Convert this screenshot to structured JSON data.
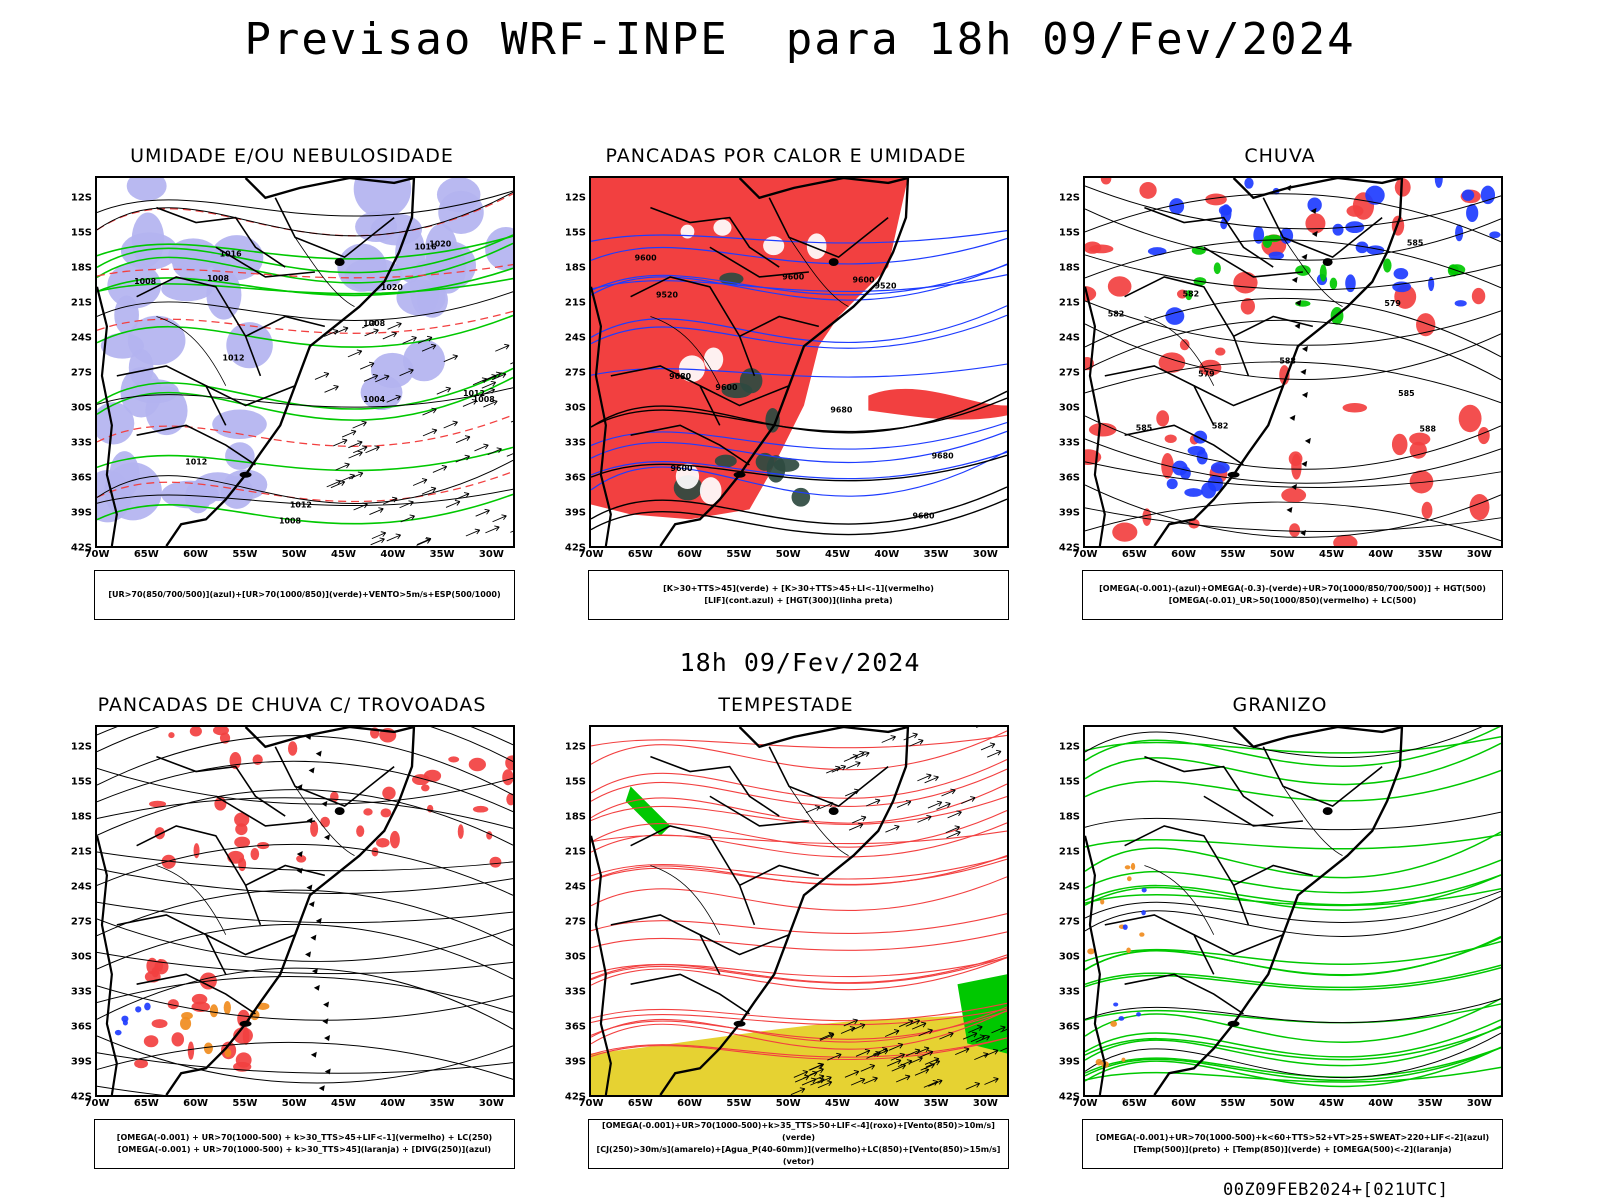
{
  "main_title": "Previsao WRF-INPE  para 18h 09/Fev/2024",
  "mid_title": "18h 09/Fev/2024",
  "footer": "00Z09FEB2024+[021UTC]",
  "lat_labels": [
    "12S",
    "15S",
    "18S",
    "21S",
    "24S",
    "27S",
    "30S",
    "33S",
    "36S",
    "39S",
    "42S"
  ],
  "lon_labels": [
    "70W",
    "65W",
    "60W",
    "55W",
    "50W",
    "45W",
    "40W",
    "35W",
    "30W"
  ],
  "colors": {
    "lavender": "#b3b3f0",
    "green": "#00c800",
    "red": "#f24040",
    "blue": "#1e3cff",
    "dark_green": "#2e4a40",
    "orange": "#f08c1e",
    "yellow": "#e6d232",
    "black": "#000000"
  },
  "panels": [
    {
      "id": "umidade",
      "title": "UMIDADE E/OU NEBULOSIDADE",
      "legend": [
        "[UR>70(850/700/500)](azul)+[UR>70(1000/850)](verde)+VENTO>5m/s+ESP(500/1000)"
      ],
      "isobars": [
        "1008",
        "1008",
        "1008",
        "1012",
        "1016",
        "1008",
        "1004",
        "1012",
        "1020",
        "1008",
        "1012",
        "1016",
        "1020",
        "1012"
      ]
    },
    {
      "id": "pancadas-calor",
      "title": "PANCADAS POR CALOR E UMIDADE",
      "legend": [
        "[K>30+TTS>45](verde) + [K>30+TTS>45+LI<-1](vermelho)",
        "[LIF](cont.azul) + [HGT(300)](linha preta)"
      ],
      "isobars": [
        "9680",
        "9680",
        "9680",
        "9600",
        "9680",
        "9520",
        "9600",
        "9600",
        "9520",
        "9600",
        "9600"
      ]
    },
    {
      "id": "chuva",
      "title": "CHUVA",
      "legend": [
        "[OMEGA(-0.001)-(azul)+OMEGA(-0.3)-(verde)+UR>70(1000/850/700/500)] + HGT(500)",
        "[OMEGA(-0.01)_UR>50(1000/850)(vermelho) + LC(500)"
      ],
      "isobars": [
        "588",
        "585",
        "582",
        "585",
        "579",
        "582",
        "585",
        "588",
        "579",
        "582"
      ]
    },
    {
      "id": "trovoadas",
      "title": "PANCADAS DE CHUVA C/ TROVOADAS",
      "legend": [
        "[OMEGA(-0.001) + UR>70(1000-500) + k>30_TTS>45+LIF<-1](vermelho) + LC(250)",
        "[OMEGA(-0.001) + UR>70(1000-500) + k>30_TTS>45](laranja) + [DIVG(250)](azul)"
      ]
    },
    {
      "id": "tempestade",
      "title": "TEMPESTADE",
      "legend": [
        "[OMEGA(-0.001)+UR>70(1000-500)+k>35_TTS>50+LIF<-4](roxo)+[Vento(850)>10m/s](verde)",
        "[CJ(250)>30m/s](amarelo)+[Agua_P(40-60mm)](vermelho)+LC(850)+[Vento(850)>15m/s](vetor)"
      ]
    },
    {
      "id": "granizo",
      "title": "GRANIZO",
      "legend": [
        "[OMEGA(-0.001)+UR>70(1000-500)+k<60+TTS>52+VT>25+SWEAT>220+LIF<-2](azul)",
        "[Temp(500)](preto) + [Temp(850)](verde) + [OMEGA(500)<-2](laranja)"
      ]
    }
  ]
}
